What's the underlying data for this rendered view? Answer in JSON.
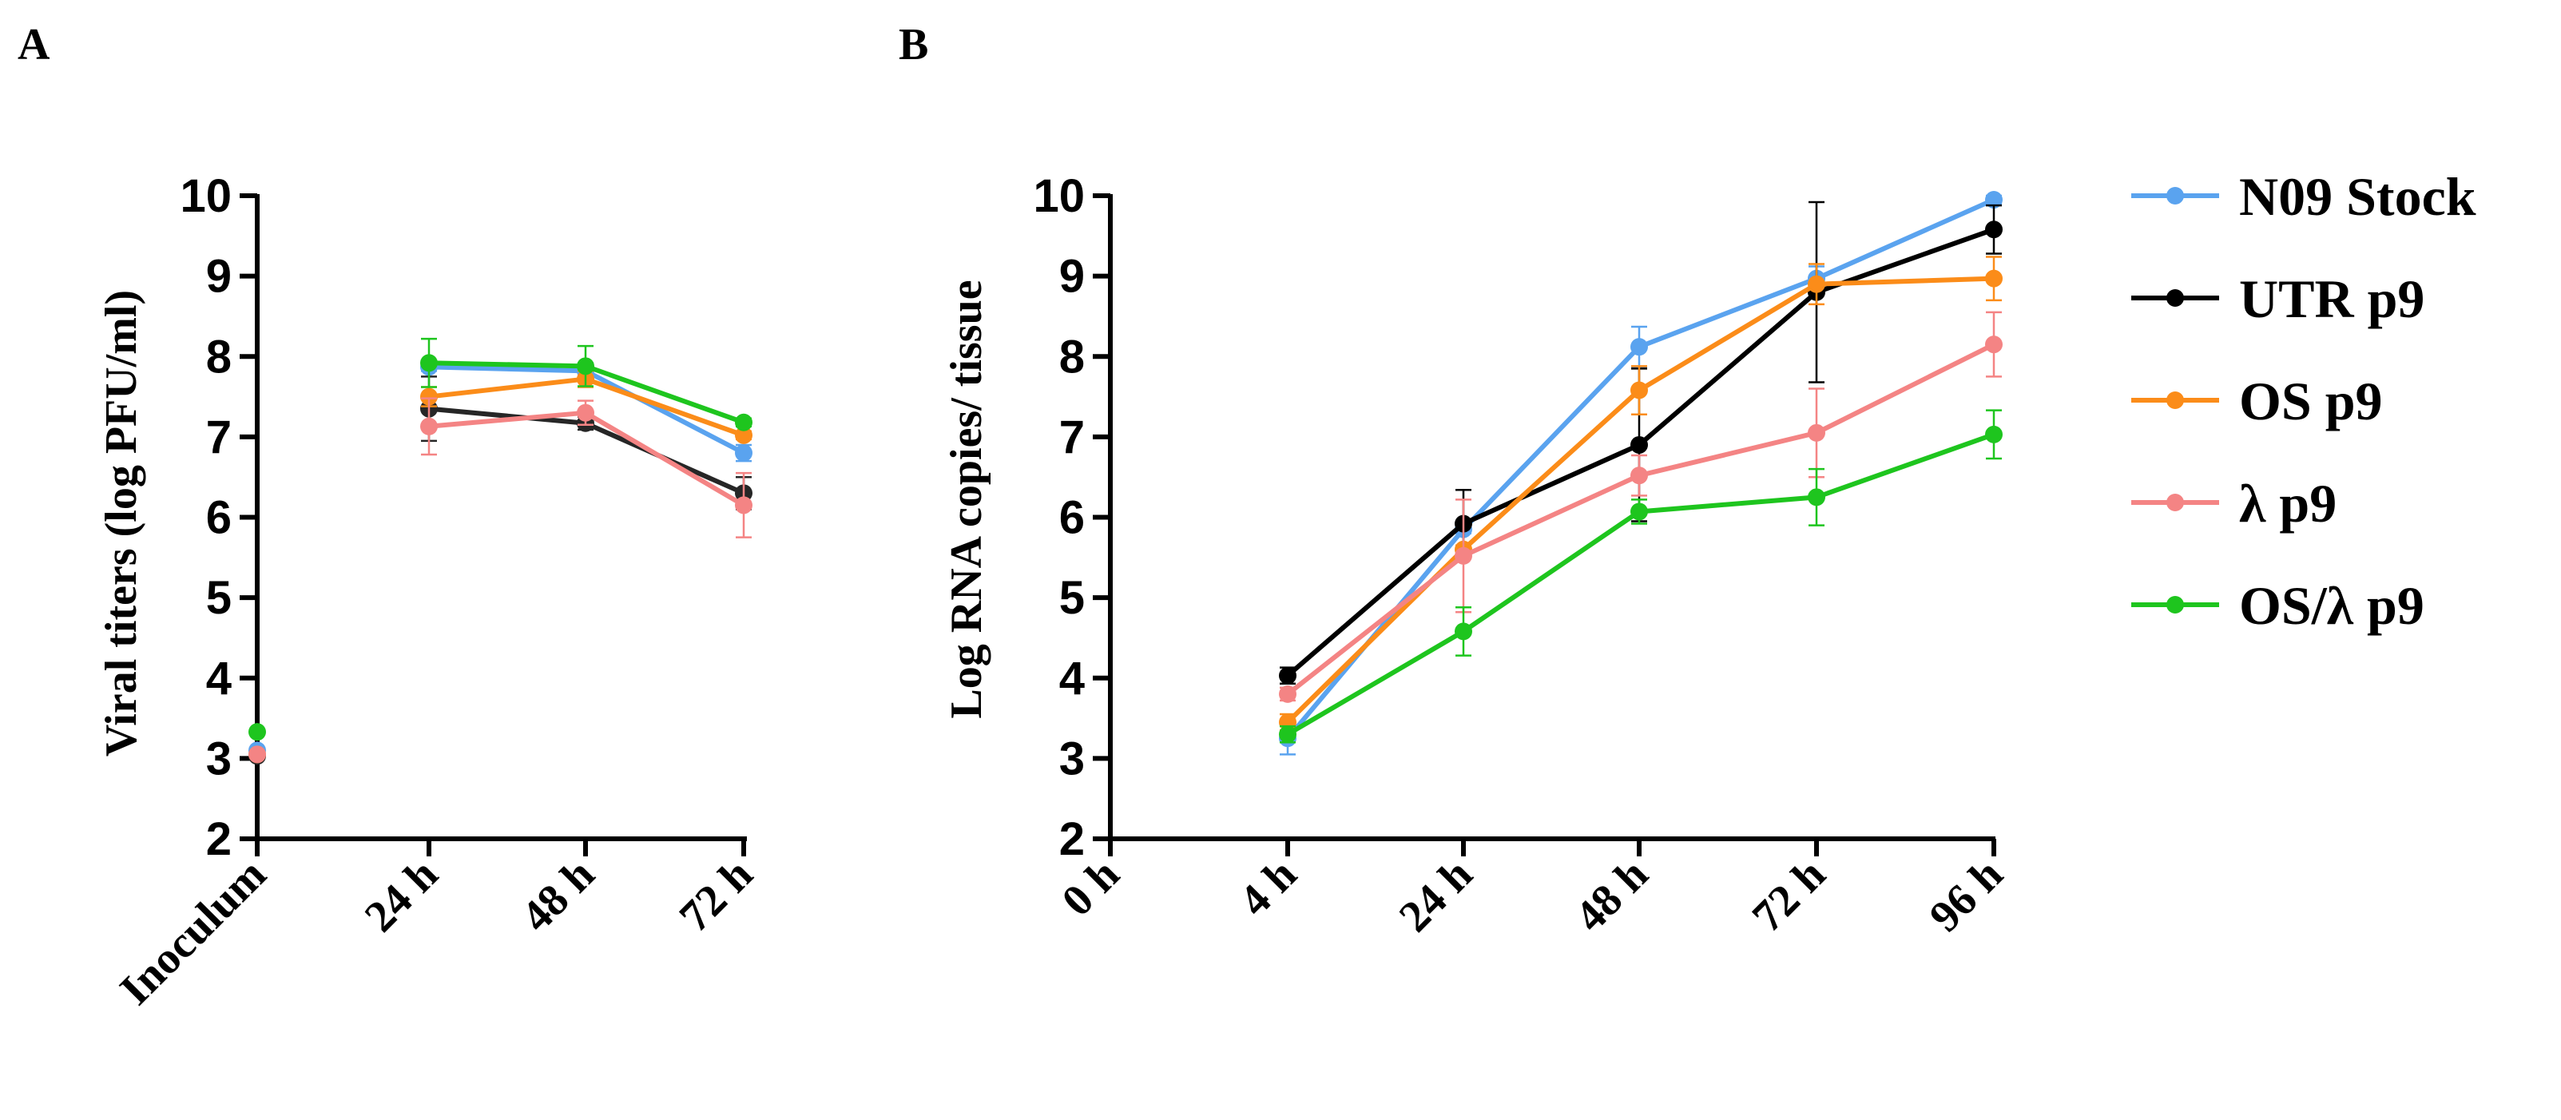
{
  "chart_data": [
    {
      "panel": "A",
      "type": "line",
      "title": "",
      "xlabel": "",
      "ylabel": "Viral titers (log PFU/ml)",
      "categories": [
        "Inoculum",
        "24 h",
        "48 h",
        "72 h"
      ],
      "ylim": [
        2,
        10
      ],
      "yticks": [
        2,
        3,
        4,
        5,
        6,
        7,
        8,
        9,
        10
      ],
      "grid": false,
      "series": [
        {
          "name": "N09 Stock",
          "color": "#5aa3ef",
          "values": [
            3.1,
            7.87,
            7.82,
            6.8
          ],
          "errors": [
            0,
            0.05,
            0.1,
            0.1
          ],
          "connect_from": 1
        },
        {
          "name": "UTR p9",
          "color": "#262626",
          "values": [
            3.03,
            7.35,
            7.17,
            6.3
          ],
          "errors": [
            0,
            0.4,
            0.08,
            0.2
          ],
          "connect_from": 1
        },
        {
          "name": "OS p9",
          "color": "#fb8c19",
          "values": [
            3.05,
            7.5,
            7.72,
            7.02
          ],
          "errors": [
            0,
            0.12,
            0.1,
            0.05
          ],
          "connect_from": 1
        },
        {
          "name": "λ p9",
          "color": "#f48484",
          "values": [
            3.05,
            7.13,
            7.3,
            6.15
          ],
          "errors": [
            0,
            0.35,
            0.15,
            0.4
          ],
          "connect_from": 1
        },
        {
          "name": "OS/λ p9",
          "color": "#1ec51e",
          "values": [
            3.33,
            7.92,
            7.88,
            7.18
          ],
          "errors": [
            0,
            0.3,
            0.25,
            0.05
          ],
          "connect_from": 1
        }
      ]
    },
    {
      "panel": "B",
      "type": "line",
      "title": "",
      "xlabel": "",
      "ylabel": "Log RNA copies/ tissue",
      "categories": [
        "0 h",
        "4 h",
        "24 h",
        "48 h",
        "72 h",
        "96 h"
      ],
      "ylim": [
        2,
        10
      ],
      "yticks": [
        2,
        3,
        4,
        5,
        6,
        7,
        8,
        9,
        10
      ],
      "grid": false,
      "legend_position": "right",
      "series": [
        {
          "name": "N09 Stock",
          "color": "#5aa3ef",
          "values": [
            null,
            3.25,
            5.85,
            8.12,
            8.97,
            9.95
          ],
          "errors": [
            0,
            0.2,
            0.05,
            0.25,
            0.15,
            0.05
          ]
        },
        {
          "name": "UTR p9",
          "color": "#000000",
          "values": [
            null,
            4.03,
            5.92,
            6.9,
            8.8,
            9.58
          ],
          "errors": [
            0,
            0.1,
            0.42,
            0.95,
            1.12,
            0.3
          ]
        },
        {
          "name": "OS p9",
          "color": "#fb8c19",
          "values": [
            null,
            3.45,
            5.6,
            7.58,
            8.9,
            8.97
          ],
          "errors": [
            0,
            0.1,
            0.05,
            0.3,
            0.25,
            0.27
          ]
        },
        {
          "name": "λ p9",
          "color": "#f48484",
          "values": [
            null,
            3.8,
            5.52,
            6.52,
            7.05,
            8.15
          ],
          "errors": [
            0,
            0.08,
            0.7,
            0.25,
            0.55,
            0.4
          ]
        },
        {
          "name": "OS/λ p9",
          "color": "#1ec51e",
          "values": [
            null,
            3.3,
            4.58,
            6.07,
            6.25,
            7.03
          ],
          "errors": [
            0,
            0.1,
            0.3,
            0.15,
            0.35,
            0.3
          ]
        }
      ]
    }
  ]
}
